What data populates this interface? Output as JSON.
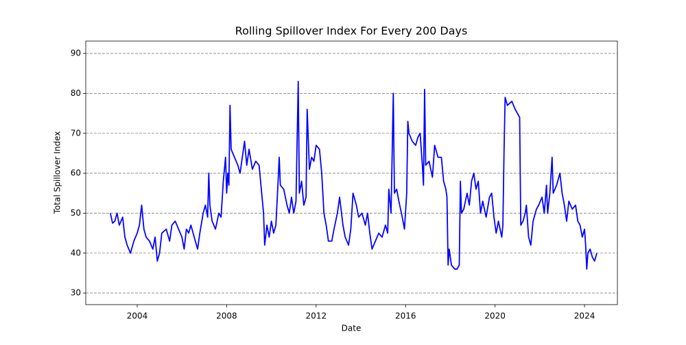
{
  "chart_data": {
    "type": "line",
    "title": "Rolling Spillover Index For Every 200 Days",
    "x_label": "Date",
    "y_label": "Total Spillover Index",
    "x": [
      2002.8,
      2002.9,
      2003.0,
      2003.1,
      2003.2,
      2003.35,
      2003.45,
      2003.55,
      2003.7,
      2003.85,
      2004.0,
      2004.1,
      2004.2,
      2004.3,
      2004.4,
      2004.55,
      2004.7,
      2004.8,
      2004.9,
      2005.0,
      2005.1,
      2005.3,
      2005.45,
      2005.55,
      2005.7,
      2005.85,
      2006.0,
      2006.1,
      2006.2,
      2006.3,
      2006.4,
      2006.55,
      2006.7,
      2006.8,
      2006.95,
      2007.05,
      2007.15,
      2007.2,
      2007.25,
      2007.35,
      2007.5,
      2007.65,
      2007.75,
      2007.85,
      2007.95,
      2008.0,
      2008.05,
      2008.1,
      2008.15,
      2008.2,
      2008.35,
      2008.5,
      2008.6,
      2008.7,
      2008.8,
      2008.9,
      2009.0,
      2009.15,
      2009.3,
      2009.45,
      2009.55,
      2009.65,
      2009.7,
      2009.8,
      2009.9,
      2010.0,
      2010.1,
      2010.2,
      2010.3,
      2010.35,
      2010.4,
      2010.55,
      2010.7,
      2010.8,
      2010.9,
      2011.0,
      2011.1,
      2011.2,
      2011.25,
      2011.35,
      2011.45,
      2011.55,
      2011.6,
      2011.7,
      2011.8,
      2011.9,
      2012.0,
      2012.15,
      2012.25,
      2012.35,
      2012.45,
      2012.55,
      2012.7,
      2012.8,
      2012.95,
      2013.05,
      2013.2,
      2013.3,
      2013.45,
      2013.55,
      2013.65,
      2013.8,
      2013.9,
      2014.05,
      2014.2,
      2014.3,
      2014.4,
      2014.5,
      2014.65,
      2014.8,
      2014.95,
      2015.1,
      2015.2,
      2015.25,
      2015.35,
      2015.45,
      2015.5,
      2015.6,
      2015.7,
      2015.85,
      2015.95,
      2016.05,
      2016.1,
      2016.15,
      2016.3,
      2016.45,
      2016.55,
      2016.65,
      2016.75,
      2016.8,
      2016.85,
      2016.9,
      2017.05,
      2017.2,
      2017.3,
      2017.45,
      2017.6,
      2017.7,
      2017.8,
      2017.85,
      2017.9,
      2017.95,
      2018.05,
      2018.2,
      2018.3,
      2018.4,
      2018.45,
      2018.5,
      2018.6,
      2018.75,
      2018.85,
      2018.95,
      2019.05,
      2019.15,
      2019.25,
      2019.35,
      2019.45,
      2019.6,
      2019.75,
      2019.85,
      2019.95,
      2020.05,
      2020.15,
      2020.3,
      2020.35,
      2020.4,
      2020.45,
      2020.55,
      2020.75,
      2020.9,
      2021.0,
      2021.1,
      2021.15,
      2021.25,
      2021.35,
      2021.4,
      2021.5,
      2021.6,
      2021.7,
      2021.85,
      2021.95,
      2022.1,
      2022.2,
      2022.3,
      2022.35,
      2022.45,
      2022.55,
      2022.6,
      2022.75,
      2022.9,
      2023.0,
      2023.1,
      2023.2,
      2023.3,
      2023.45,
      2023.6,
      2023.7,
      2023.8,
      2023.9,
      2024.0,
      2024.05,
      2024.1,
      2024.15,
      2024.25,
      2024.35,
      2024.45,
      2024.55
    ],
    "series": [
      {
        "color": "#0000ff",
        "values": [
          50,
          47.5,
          48,
          50,
          47,
          49,
          44,
          42,
          40,
          43,
          45,
          47,
          52,
          46,
          44,
          43,
          41,
          44,
          38,
          40,
          45,
          46,
          43,
          47,
          48,
          46,
          44,
          41,
          46,
          45,
          47,
          44,
          41,
          45,
          50,
          52,
          49,
          60,
          52,
          48,
          46,
          50,
          49,
          58,
          64,
          55,
          60,
          57,
          77,
          66,
          64,
          62,
          60,
          64,
          68,
          62,
          66,
          61,
          63,
          62,
          56,
          50,
          42,
          47,
          44,
          48,
          45,
          47,
          58,
          64,
          57,
          56,
          52,
          50,
          54,
          50,
          53,
          83,
          55,
          58,
          52,
          54,
          76,
          61,
          64,
          63,
          67,
          66,
          60,
          50,
          47,
          43,
          43,
          46,
          50,
          54,
          47,
          44,
          42,
          46,
          55,
          52,
          49,
          50,
          47,
          50,
          45,
          41,
          43,
          45,
          44,
          47,
          45,
          56,
          50,
          80,
          55,
          56,
          53,
          49,
          46,
          55,
          73,
          70,
          68,
          67,
          69,
          70,
          62,
          57,
          81,
          62,
          63,
          59,
          67,
          64,
          64,
          58,
          56,
          54,
          37,
          41,
          37,
          36,
          36,
          37,
          58,
          50,
          51,
          55,
          52,
          58,
          60,
          56,
          58,
          50,
          53,
          49,
          54,
          55,
          49,
          45,
          48,
          44,
          47,
          65,
          79,
          77,
          78,
          76,
          75,
          74,
          47,
          48,
          50,
          52,
          44,
          42,
          48,
          51,
          52,
          54,
          50,
          57,
          50,
          55,
          64,
          55,
          57,
          60,
          55,
          52,
          48,
          53,
          51,
          52,
          48,
          47,
          44,
          46,
          42,
          36,
          40,
          41,
          39,
          38,
          40
        ]
      }
    ],
    "xlim": [
      2001.7,
      2025.47
    ],
    "xticks": [
      2004,
      2008,
      2012,
      2016,
      2020,
      2024
    ],
    "ylim": [
      27.1,
      93.1
    ],
    "yticks": [
      30,
      40,
      50,
      60,
      70,
      80,
      90
    ],
    "grid": true
  }
}
